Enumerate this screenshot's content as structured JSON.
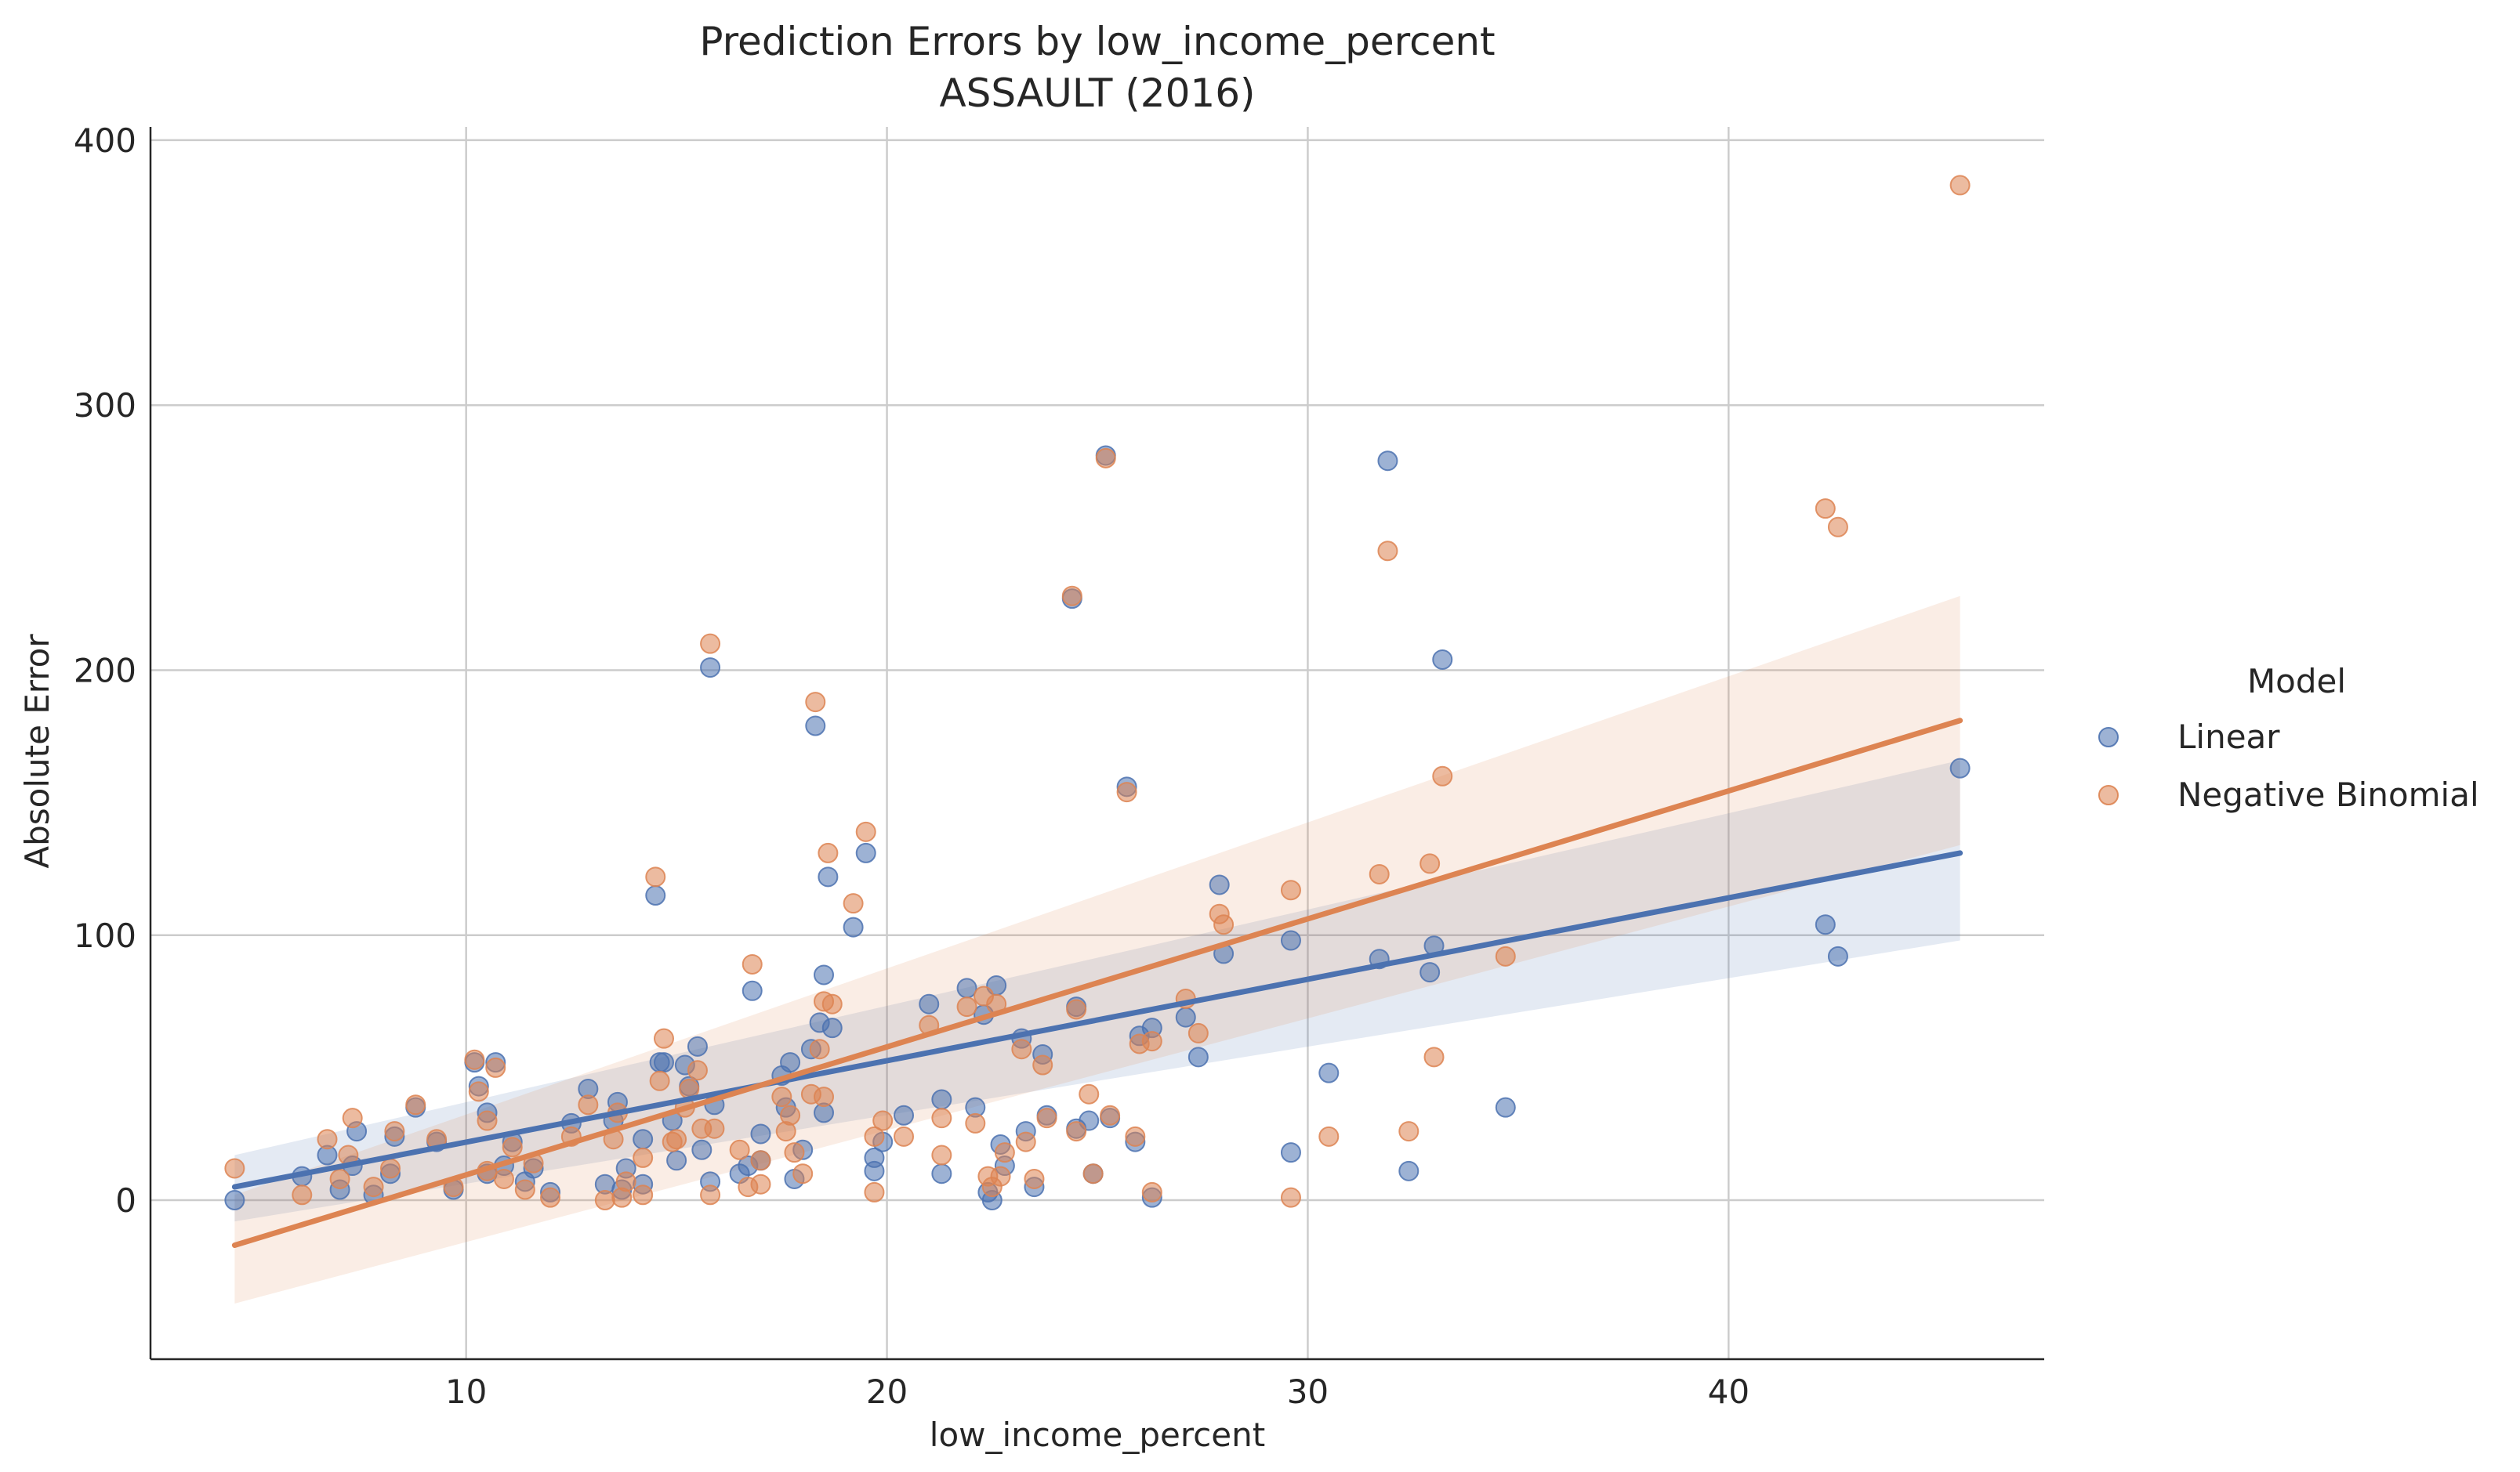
{
  "chart_data": {
    "type": "scatter",
    "title": "Prediction Errors by low_income_percent",
    "subtitle": "ASSAULT (2016)",
    "xlabel": "low_income_percent",
    "ylabel": "Absolute Error",
    "xlim": [
      2.5,
      47.5
    ],
    "ylim": [
      -60,
      405
    ],
    "xticks": [
      10,
      20,
      30,
      40
    ],
    "yticks": [
      0,
      100,
      200,
      300,
      400
    ],
    "grid": true,
    "legend": {
      "title": "Model",
      "placement": "right",
      "entries": [
        "Linear",
        "Negative Binomial"
      ]
    },
    "series": [
      {
        "name": "Linear",
        "color": "#4c72b0",
        "regression": {
          "x": [
            4.5,
            45.5
          ],
          "y": [
            5,
            131
          ],
          "ci_low": [
            -8,
            98
          ],
          "ci_high": [
            17,
            166
          ]
        },
        "points": [
          [
            4.5,
            0
          ],
          [
            6.1,
            9
          ],
          [
            6.7,
            17
          ],
          [
            7.0,
            4
          ],
          [
            7.3,
            13
          ],
          [
            7.4,
            26
          ],
          [
            7.8,
            2
          ],
          [
            8.2,
            10
          ],
          [
            8.3,
            24
          ],
          [
            8.8,
            35
          ],
          [
            9.3,
            22
          ],
          [
            9.7,
            4
          ],
          [
            10.2,
            52
          ],
          [
            10.3,
            43
          ],
          [
            10.5,
            33
          ],
          [
            10.5,
            10
          ],
          [
            10.7,
            52
          ],
          [
            10.9,
            13
          ],
          [
            11.1,
            22
          ],
          [
            11.4,
            7
          ],
          [
            11.6,
            12
          ],
          [
            12.0,
            3
          ],
          [
            12.5,
            29
          ],
          [
            12.9,
            42
          ],
          [
            13.3,
            6
          ],
          [
            13.5,
            30
          ],
          [
            13.6,
            37
          ],
          [
            13.7,
            4
          ],
          [
            13.8,
            12
          ],
          [
            14.2,
            23
          ],
          [
            14.2,
            6
          ],
          [
            14.5,
            115
          ],
          [
            14.6,
            52
          ],
          [
            14.7,
            52
          ],
          [
            14.9,
            30
          ],
          [
            15.0,
            15
          ],
          [
            15.2,
            51
          ],
          [
            15.3,
            43
          ],
          [
            15.5,
            58
          ],
          [
            15.6,
            19
          ],
          [
            15.8,
            201
          ],
          [
            15.8,
            7
          ],
          [
            15.9,
            36
          ],
          [
            16.5,
            10
          ],
          [
            16.7,
            13
          ],
          [
            16.8,
            79
          ],
          [
            17.0,
            25
          ],
          [
            17.0,
            15
          ],
          [
            17.5,
            47
          ],
          [
            17.6,
            35
          ],
          [
            17.7,
            52
          ],
          [
            17.8,
            8
          ],
          [
            18.0,
            19
          ],
          [
            18.2,
            57
          ],
          [
            18.3,
            179
          ],
          [
            18.4,
            67
          ],
          [
            18.5,
            85
          ],
          [
            18.5,
            33
          ],
          [
            18.6,
            122
          ],
          [
            18.7,
            65
          ],
          [
            19.2,
            103
          ],
          [
            19.5,
            131
          ],
          [
            19.7,
            16
          ],
          [
            19.7,
            11
          ],
          [
            19.9,
            22
          ],
          [
            20.4,
            32
          ],
          [
            21.0,
            74
          ],
          [
            21.3,
            38
          ],
          [
            21.3,
            10
          ],
          [
            21.9,
            80
          ],
          [
            22.1,
            35
          ],
          [
            22.3,
            70
          ],
          [
            22.4,
            3
          ],
          [
            22.5,
            0
          ],
          [
            22.6,
            81
          ],
          [
            22.7,
            21
          ],
          [
            22.8,
            13
          ],
          [
            23.2,
            61
          ],
          [
            23.3,
            26
          ],
          [
            23.5,
            5
          ],
          [
            23.7,
            55
          ],
          [
            23.8,
            32
          ],
          [
            24.4,
            227
          ],
          [
            24.5,
            73
          ],
          [
            24.5,
            27
          ],
          [
            24.8,
            30
          ],
          [
            24.9,
            10
          ],
          [
            25.2,
            281
          ],
          [
            25.3,
            31
          ],
          [
            25.7,
            156
          ],
          [
            25.9,
            22
          ],
          [
            26.0,
            62
          ],
          [
            26.3,
            65
          ],
          [
            26.3,
            1
          ],
          [
            27.1,
            69
          ],
          [
            27.4,
            54
          ],
          [
            27.9,
            119
          ],
          [
            28.0,
            93
          ],
          [
            29.6,
            98
          ],
          [
            29.6,
            18
          ],
          [
            30.5,
            48
          ],
          [
            31.7,
            91
          ],
          [
            31.9,
            279
          ],
          [
            32.4,
            11
          ],
          [
            32.9,
            86
          ],
          [
            33.0,
            96
          ],
          [
            33.2,
            204
          ],
          [
            34.7,
            35
          ],
          [
            42.3,
            104
          ],
          [
            42.6,
            92
          ],
          [
            45.5,
            163
          ]
        ]
      },
      {
        "name": "Negative Binomial",
        "color": "#dd8452",
        "regression": {
          "x": [
            4.5,
            45.5
          ],
          "y": [
            -17,
            181
          ],
          "ci_low": [
            -39,
            134
          ],
          "ci_high": [
            2,
            228
          ]
        },
        "points": [
          [
            4.5,
            12
          ],
          [
            6.1,
            2
          ],
          [
            6.7,
            23
          ],
          [
            7.0,
            8
          ],
          [
            7.2,
            17
          ],
          [
            7.3,
            31
          ],
          [
            7.8,
            5
          ],
          [
            8.2,
            12
          ],
          [
            8.3,
            26
          ],
          [
            8.8,
            36
          ],
          [
            9.3,
            23
          ],
          [
            9.7,
            5
          ],
          [
            10.2,
            53
          ],
          [
            10.3,
            41
          ],
          [
            10.5,
            30
          ],
          [
            10.5,
            11
          ],
          [
            10.7,
            50
          ],
          [
            10.9,
            8
          ],
          [
            11.1,
            20
          ],
          [
            11.4,
            4
          ],
          [
            11.6,
            14
          ],
          [
            12.0,
            1
          ],
          [
            12.5,
            24
          ],
          [
            12.9,
            36
          ],
          [
            13.3,
            0
          ],
          [
            13.5,
            23
          ],
          [
            13.6,
            33
          ],
          [
            13.7,
            1
          ],
          [
            13.8,
            7
          ],
          [
            14.2,
            16
          ],
          [
            14.2,
            2
          ],
          [
            14.5,
            122
          ],
          [
            14.6,
            45
          ],
          [
            14.7,
            61
          ],
          [
            14.9,
            22
          ],
          [
            15.0,
            23
          ],
          [
            15.2,
            35
          ],
          [
            15.3,
            42
          ],
          [
            15.5,
            49
          ],
          [
            15.6,
            27
          ],
          [
            15.8,
            210
          ],
          [
            15.8,
            2
          ],
          [
            15.9,
            27
          ],
          [
            16.5,
            19
          ],
          [
            16.7,
            5
          ],
          [
            16.8,
            89
          ],
          [
            17.0,
            15
          ],
          [
            17.0,
            6
          ],
          [
            17.5,
            39
          ],
          [
            17.6,
            26
          ],
          [
            17.7,
            32
          ],
          [
            17.8,
            18
          ],
          [
            18.0,
            10
          ],
          [
            18.2,
            40
          ],
          [
            18.3,
            188
          ],
          [
            18.4,
            57
          ],
          [
            18.5,
            75
          ],
          [
            18.5,
            39
          ],
          [
            18.6,
            131
          ],
          [
            18.7,
            74
          ],
          [
            19.2,
            112
          ],
          [
            19.5,
            139
          ],
          [
            19.7,
            24
          ],
          [
            19.7,
            3
          ],
          [
            19.9,
            30
          ],
          [
            20.4,
            24
          ],
          [
            21.0,
            66
          ],
          [
            21.3,
            31
          ],
          [
            21.3,
            17
          ],
          [
            21.9,
            73
          ],
          [
            22.1,
            29
          ],
          [
            22.3,
            77
          ],
          [
            22.4,
            9
          ],
          [
            22.5,
            5
          ],
          [
            22.6,
            74
          ],
          [
            22.7,
            9
          ],
          [
            22.8,
            18
          ],
          [
            23.2,
            57
          ],
          [
            23.3,
            22
          ],
          [
            23.5,
            8
          ],
          [
            23.7,
            51
          ],
          [
            23.8,
            31
          ],
          [
            24.4,
            228
          ],
          [
            24.5,
            72
          ],
          [
            24.5,
            26
          ],
          [
            24.8,
            40
          ],
          [
            24.9,
            10
          ],
          [
            25.2,
            280
          ],
          [
            25.3,
            32
          ],
          [
            25.7,
            154
          ],
          [
            25.9,
            24
          ],
          [
            26.0,
            59
          ],
          [
            26.3,
            60
          ],
          [
            26.3,
            3
          ],
          [
            27.1,
            76
          ],
          [
            27.4,
            63
          ],
          [
            27.9,
            108
          ],
          [
            28.0,
            104
          ],
          [
            29.6,
            117
          ],
          [
            29.6,
            1
          ],
          [
            30.5,
            24
          ],
          [
            31.7,
            123
          ],
          [
            31.9,
            245
          ],
          [
            32.4,
            26
          ],
          [
            32.9,
            127
          ],
          [
            33.0,
            54
          ],
          [
            33.2,
            160
          ],
          [
            34.7,
            92
          ],
          [
            42.3,
            261
          ],
          [
            42.6,
            254
          ],
          [
            45.5,
            383
          ]
        ]
      }
    ]
  }
}
